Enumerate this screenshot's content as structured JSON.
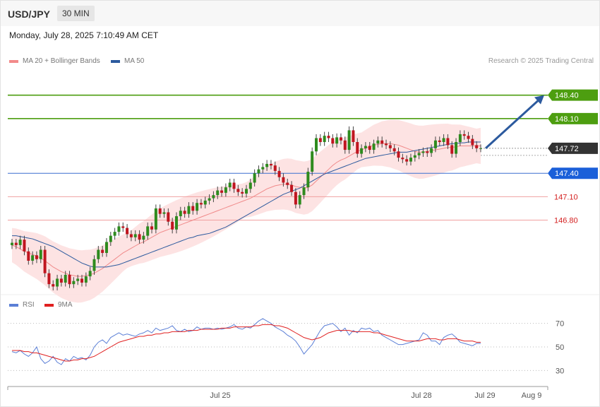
{
  "header": {
    "symbol": "USD/JPY",
    "interval": "30 MIN"
  },
  "datetime": "Monday, July 28, 2025 7:10:49 AM CET",
  "legend": [
    {
      "label": "MA 20 + Bollinger Bands",
      "color": "#f28a8a"
    },
    {
      "label": "MA 50",
      "color": "#2c5a9e"
    }
  ],
  "credit": "Research © 2025 Trading Central",
  "rsi_legend": [
    {
      "label": "RSI",
      "color": "#5b7fd6"
    },
    {
      "label": "9MA",
      "color": "#e02020"
    }
  ],
  "chart_data": [
    {
      "type": "candlestick",
      "ylim": [
        145.9,
        148.75
      ],
      "levels": [
        {
          "value": 148.4,
          "label": "148.40",
          "style": "resistance",
          "color": "#4d9e10"
        },
        {
          "value": 148.1,
          "label": "148.10",
          "style": "resistance",
          "color": "#4d9e10"
        },
        {
          "value": 147.72,
          "label": "147.72",
          "style": "last-price",
          "color": "#333333"
        },
        {
          "value": 147.4,
          "label": "147.40",
          "style": "pivot",
          "color": "#1a5fd9"
        },
        {
          "value": 147.1,
          "label": "147.10",
          "style": "support",
          "color": "#d42020"
        },
        {
          "value": 146.8,
          "label": "146.80",
          "style": "support",
          "color": "#d42020"
        }
      ],
      "projection": {
        "from": 147.72,
        "to": 148.4,
        "color": "#2c5a9e"
      },
      "candles_close": [
        146.51,
        146.48,
        146.55,
        146.4,
        146.28,
        146.35,
        146.3,
        146.42,
        146.12,
        145.98,
        145.95,
        146.05,
        146.0,
        146.1,
        145.98,
        146.02,
        146.05,
        146.0,
        146.08,
        146.15,
        146.3,
        146.42,
        146.38,
        146.52,
        146.6,
        146.65,
        146.72,
        146.7,
        146.62,
        146.58,
        146.62,
        146.55,
        146.6,
        146.72,
        146.68,
        146.95,
        146.88,
        146.9,
        146.78,
        146.68,
        146.85,
        146.92,
        146.88,
        146.98,
        146.92,
        147.02,
        147.0,
        147.05,
        147.08,
        147.12,
        147.18,
        147.15,
        147.22,
        147.28,
        147.2,
        147.16,
        147.14,
        147.2,
        147.28,
        147.4,
        147.45,
        147.48,
        147.52,
        147.5,
        147.43,
        147.35,
        147.28,
        147.25,
        147.16,
        147.0,
        147.12,
        147.22,
        147.42,
        147.68,
        147.85,
        147.8,
        147.88,
        147.85,
        147.78,
        147.86,
        147.82,
        147.7,
        147.95,
        147.8,
        147.65,
        147.72,
        147.75,
        147.7,
        147.78,
        147.82,
        147.78,
        147.76,
        147.72,
        147.68,
        147.6,
        147.58,
        147.55,
        147.6,
        147.63,
        147.66,
        147.68,
        147.66,
        147.72,
        147.82,
        147.8,
        147.85,
        147.76,
        147.65,
        147.8,
        147.9,
        147.88,
        147.84,
        147.76,
        147.72,
        147.72
      ],
      "ma20": [
        146.48,
        146.46,
        146.43,
        146.4,
        146.38,
        146.36,
        146.34,
        146.31,
        146.28,
        146.24,
        146.2,
        146.17,
        146.14,
        146.12,
        146.1,
        146.09,
        146.08,
        146.08,
        146.09,
        146.1,
        146.12,
        146.15,
        146.18,
        146.22,
        146.26,
        146.3,
        146.34,
        146.38,
        146.41,
        146.44,
        146.47,
        146.5,
        146.52,
        146.55,
        146.58,
        146.61,
        146.64,
        146.66,
        146.68,
        146.7,
        146.72,
        146.74,
        146.76,
        146.78,
        146.8,
        146.82,
        146.84,
        146.86,
        146.88,
        146.9,
        146.92,
        146.94,
        146.96,
        146.98,
        147.0,
        147.02,
        147.04,
        147.06,
        147.08,
        147.11,
        147.14,
        147.17,
        147.2,
        147.22,
        147.24,
        147.25,
        147.26,
        147.26,
        147.25,
        147.23,
        147.22,
        147.21,
        147.22,
        147.25,
        147.3,
        147.35,
        147.4,
        147.45,
        147.5,
        147.54,
        147.57,
        147.59,
        147.62,
        147.65,
        147.68,
        147.7,
        147.72,
        147.74,
        147.76,
        147.77,
        147.78,
        147.78,
        147.78,
        147.77,
        147.76,
        147.74,
        147.72,
        147.7,
        147.68,
        147.67,
        147.67,
        147.68,
        147.69,
        147.7,
        147.71,
        147.72,
        147.73,
        147.73,
        147.74,
        147.75,
        147.75,
        147.75,
        147.75,
        147.75,
        147.75
      ],
      "ma50": [
        146.6,
        146.6,
        146.59,
        146.58,
        146.57,
        146.56,
        146.54,
        146.52,
        146.5,
        146.48,
        146.46,
        146.43,
        146.4,
        146.37,
        146.34,
        146.31,
        146.28,
        146.25,
        146.23,
        146.21,
        146.2,
        146.2,
        146.2,
        146.2,
        146.21,
        146.22,
        146.23,
        146.25,
        146.27,
        146.29,
        146.31,
        146.33,
        146.35,
        146.37,
        146.39,
        146.41,
        146.43,
        146.45,
        146.47,
        146.49,
        146.51,
        146.53,
        146.55,
        146.57,
        146.58,
        146.6,
        146.61,
        146.62,
        146.63,
        146.65,
        146.67,
        146.69,
        146.71,
        146.74,
        146.77,
        146.8,
        146.83,
        146.86,
        146.89,
        146.92,
        146.95,
        146.98,
        147.01,
        147.04,
        147.07,
        147.1,
        147.13,
        147.15,
        147.17,
        147.19,
        147.21,
        147.24,
        147.27,
        147.3,
        147.33,
        147.36,
        147.39,
        147.41,
        147.43,
        147.45,
        147.47,
        147.49,
        147.51,
        147.53,
        147.55,
        147.57,
        147.59,
        147.6,
        147.61,
        147.62,
        147.63,
        147.64,
        147.65,
        147.66,
        147.67,
        147.67,
        147.67,
        147.68,
        147.69,
        147.7,
        147.71,
        147.72,
        147.73,
        147.74,
        147.75,
        147.76,
        147.77,
        147.78,
        147.78,
        147.79,
        147.79,
        147.8,
        147.8,
        147.8,
        147.8
      ]
    },
    {
      "type": "line",
      "series": [
        {
          "name": "RSI"
        },
        {
          "name": "9MA"
        }
      ],
      "ylim": [
        20,
        80
      ],
      "ticks": [
        "70",
        "50",
        "30"
      ],
      "tick_values": [
        70,
        50,
        30
      ],
      "rsi": [
        46,
        45,
        47,
        44,
        42,
        45,
        50,
        40,
        36,
        38,
        42,
        37,
        35,
        40,
        38,
        42,
        40,
        41,
        39,
        43,
        50,
        54,
        56,
        53,
        58,
        60,
        62,
        60,
        61,
        60,
        59,
        61,
        62,
        64,
        62,
        66,
        64,
        65,
        66,
        68,
        64,
        63,
        65,
        63,
        64,
        67,
        65,
        66,
        66,
        65,
        66,
        65,
        66,
        67,
        69,
        66,
        65,
        67,
        66,
        69,
        72,
        74,
        72,
        70,
        67,
        65,
        63,
        60,
        58,
        55,
        50,
        44,
        48,
        52,
        58,
        64,
        68,
        69,
        70,
        67,
        63,
        66,
        60,
        64,
        62,
        66,
        65,
        66,
        63,
        64,
        60,
        58,
        56,
        54,
        52,
        52,
        53,
        54,
        55,
        56,
        62,
        60,
        55,
        55,
        52,
        58,
        60,
        61,
        58,
        54,
        53,
        52,
        51,
        53,
        53
      ],
      "rsi_ma": [
        47,
        47,
        47,
        46,
        46,
        45,
        45,
        44,
        43,
        42,
        41,
        40,
        39,
        38,
        38,
        39,
        39,
        40,
        40,
        41,
        42,
        44,
        46,
        48,
        50,
        52,
        54,
        55,
        56,
        57,
        58,
        59,
        59,
        60,
        60,
        61,
        61,
        62,
        62,
        63,
        63,
        63,
        63,
        64,
        64,
        64,
        65,
        65,
        65,
        65,
        65,
        66,
        66,
        66,
        67,
        67,
        67,
        67,
        67,
        68,
        68,
        69,
        69,
        69,
        68,
        68,
        67,
        66,
        64,
        62,
        60,
        58,
        57,
        56,
        57,
        58,
        60,
        62,
        63,
        64,
        64,
        64,
        64,
        63,
        63,
        63,
        63,
        63,
        62,
        62,
        61,
        60,
        59,
        58,
        57,
        56,
        55,
        55,
        55,
        55,
        56,
        57,
        57,
        57,
        56,
        56,
        57,
        57,
        57,
        56,
        55,
        55,
        55,
        54,
        54
      ]
    }
  ],
  "xaxis": {
    "labels": [
      "Jul 25",
      "Jul 28",
      "Jul 29",
      "Aug 9"
    ]
  }
}
